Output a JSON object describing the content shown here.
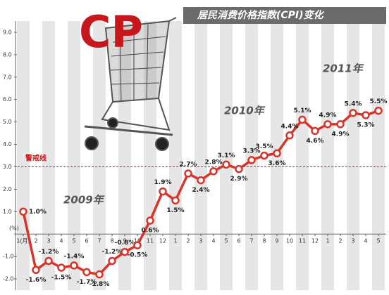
{
  "chart_data": {
    "type": "line",
    "title": "居民消费价格指数(CPI)变化",
    "emblem": "CP",
    "y_unit_label": "(%)",
    "categories": [
      "1(月)",
      "2",
      "3",
      "4",
      "5",
      "6",
      "7",
      "8",
      "9",
      "10",
      "11",
      "12",
      "1",
      "2",
      "3",
      "4",
      "5",
      "6",
      "7",
      "8",
      "9",
      "10",
      "11",
      "12",
      "1",
      "2",
      "3",
      "4",
      "5"
    ],
    "series": [
      {
        "name": "CPI",
        "color": "#d9342b",
        "values": [
          1.0,
          -1.6,
          -1.2,
          -1.5,
          -1.4,
          -1.7,
          -1.8,
          -1.2,
          -0.8,
          -0.5,
          0.6,
          1.9,
          1.5,
          2.7,
          2.4,
          2.8,
          3.1,
          2.9,
          3.3,
          3.5,
          3.6,
          4.4,
          5.1,
          4.6,
          4.9,
          4.9,
          5.4,
          5.3,
          5.5
        ],
        "value_labels": [
          "1.0%",
          "-1.6%",
          "-1.2%",
          "-1.5%",
          "-1.4%",
          "-1.7%",
          "-1.8%",
          "-1.2%",
          "-0.8%",
          "-0.5%",
          "0.6%",
          "1.9%",
          "1.5%",
          "2.7%",
          "2.4%",
          "2.8%",
          "3.1%",
          "2.9%",
          "3.3%",
          "3.5%",
          "3.6%",
          "4.4%",
          "5.1%",
          "4.6%",
          "4.9%",
          "4.9%",
          "5.4%",
          "5.3%",
          "5.5%"
        ]
      }
    ],
    "ylim": [
      -2.5,
      9.5
    ],
    "yticks": [
      {
        "value": 9,
        "label": "9.0"
      },
      {
        "value": 8,
        "label": "8.0"
      },
      {
        "value": 7,
        "label": "7.0"
      },
      {
        "value": 6,
        "label": "6.0"
      },
      {
        "value": 5,
        "label": "5.0"
      },
      {
        "value": 4,
        "label": "4.0"
      },
      {
        "value": 3,
        "label": "3.0"
      },
      {
        "value": 2,
        "label": "2.0"
      },
      {
        "value": 1,
        "label": "1.0"
      },
      {
        "value": -1,
        "label": "-1.0"
      },
      {
        "value": -2,
        "label": "-2.0"
      }
    ],
    "threshold": {
      "value": 3,
      "label": "警戒线"
    },
    "annotations": [
      {
        "text": "2009年"
      },
      {
        "text": "2010年"
      },
      {
        "text": "2011年"
      }
    ]
  }
}
